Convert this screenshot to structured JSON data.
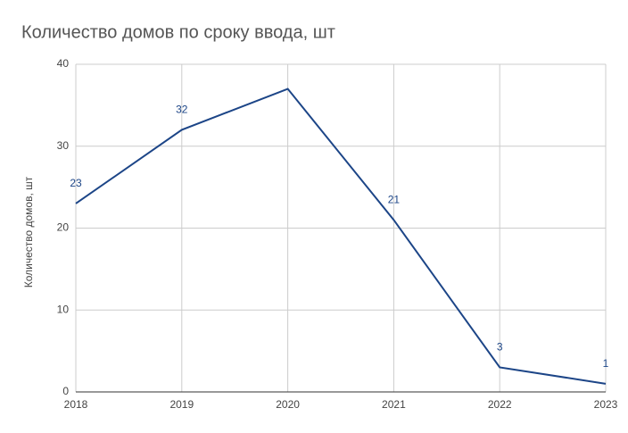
{
  "chart_data": {
    "type": "line",
    "title": "Количество домов по сроку ввода, шт",
    "y_label": "Количество домов, шт",
    "x": [
      2018,
      2019,
      2020,
      2021,
      2022,
      2023
    ],
    "xlim": [
      2018,
      2023
    ],
    "xticks": [
      2018,
      2019,
      2020,
      2021,
      2022,
      2023
    ],
    "values": [
      23,
      32,
      37,
      21,
      3,
      1
    ],
    "value_labels": [
      "23",
      "32",
      null,
      "21",
      "3",
      "1"
    ],
    "color": "#1c4587",
    "ylim": [
      0,
      40
    ],
    "yticks": [
      0,
      10,
      20,
      30,
      40
    ],
    "grid": true
  }
}
